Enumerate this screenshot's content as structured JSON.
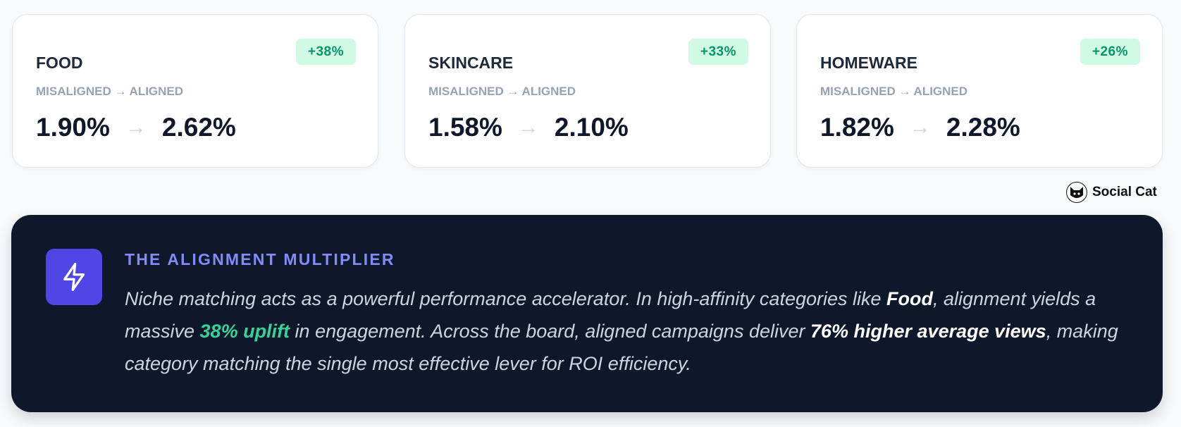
{
  "cards": [
    {
      "title": "FOOD",
      "badge": "+38%",
      "label": "MISALIGNED → ALIGNED",
      "from": "1.90%",
      "arrow": "→",
      "to": "2.62%"
    },
    {
      "title": "SKINCARE",
      "badge": "+33%",
      "label": "MISALIGNED → ALIGNED",
      "from": "1.58%",
      "arrow": "→",
      "to": "2.10%"
    },
    {
      "title": "HOMEWARE",
      "badge": "+26%",
      "label": "MISALIGNED → ALIGNED",
      "from": "1.82%",
      "arrow": "→",
      "to": "2.28%"
    }
  ],
  "brand": {
    "name": "Social Cat",
    "icon": "cat-logo-icon"
  },
  "insight": {
    "icon": "lightning-bolt-icon",
    "title": "THE ALIGNMENT MULTIPLIER",
    "body": {
      "p1": "Niche matching acts as a powerful performance accelerator. In high-affinity categories like ",
      "b1": "Food",
      "p2": ", alignment yields a massive ",
      "g1": "38% uplift",
      "p3": " in engagement. Across the board, aligned campaigns deliver ",
      "b2": "76% higher average views",
      "p4": ", making category matching the single most effective lever for ROI efficiency."
    }
  },
  "colors": {
    "accent": "#4f46e5",
    "accent_text": "#818cf8",
    "positive": "#059669",
    "positive_bg": "#d1fae5",
    "panel_bg": "#0f172a",
    "highlight": "#34d399"
  }
}
